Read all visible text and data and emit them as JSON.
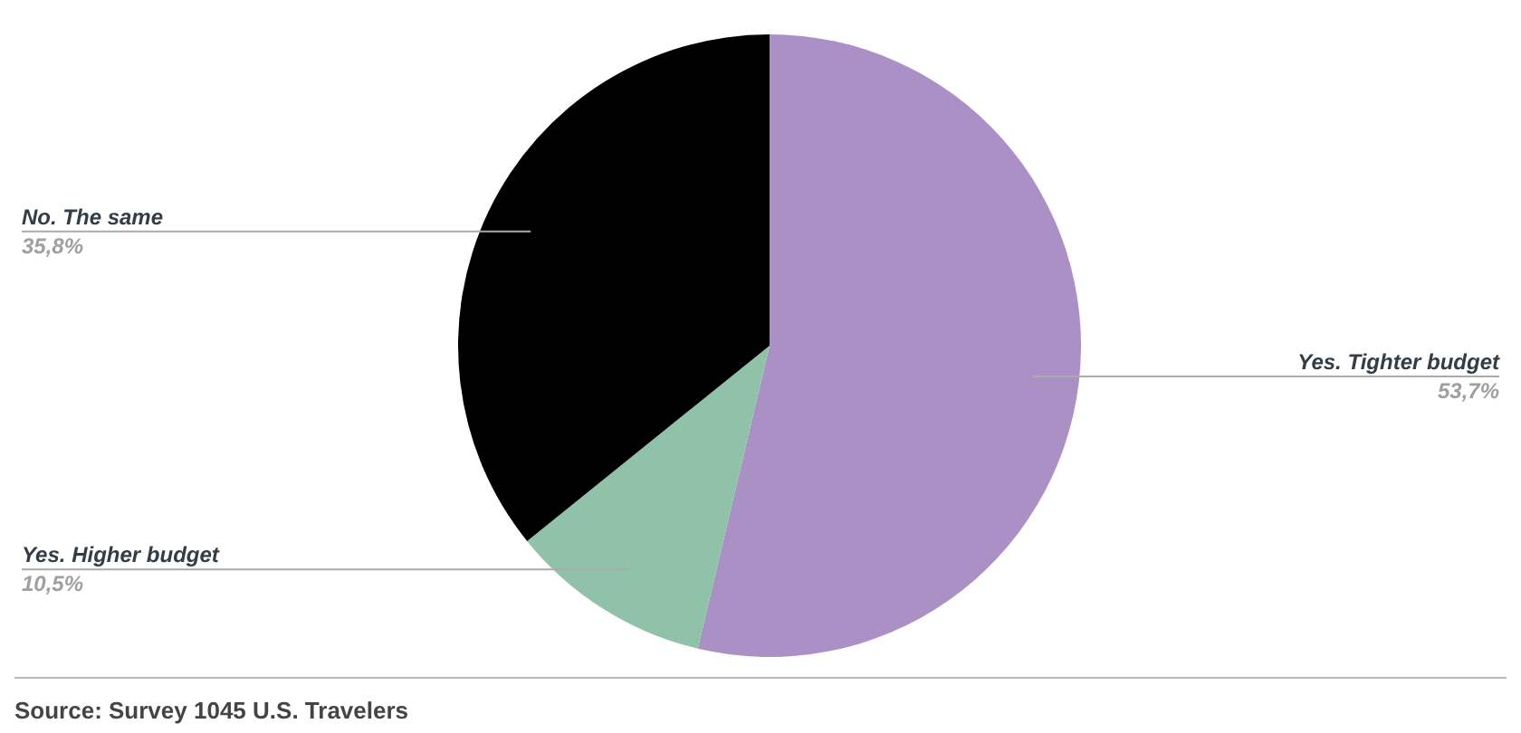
{
  "chart_data": {
    "type": "pie",
    "categories": [
      "Yes. Tighter budget",
      "Yes. Higher budget",
      "No. The same"
    ],
    "values": [
      53.7,
      10.5,
      35.8
    ],
    "colors": [
      "#ab90c6",
      "#8fc2a8",
      "#000000"
    ],
    "value_labels": [
      "53,7%",
      "10,5%",
      "35,8%"
    ],
    "legend": false,
    "annotations": [
      "Source: Survey 1045 U.S. Travelers"
    ]
  }
}
